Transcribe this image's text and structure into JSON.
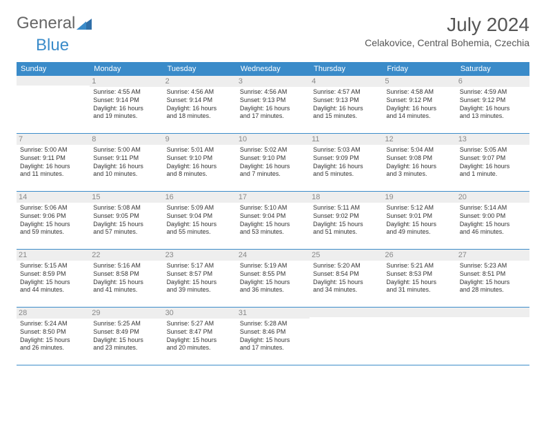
{
  "logo": {
    "text1": "General",
    "text2": "Blue"
  },
  "title": "July 2024",
  "location": "Celakovice, Central Bohemia, Czechia",
  "weekday_headers": [
    "Sunday",
    "Monday",
    "Tuesday",
    "Wednesday",
    "Thursday",
    "Friday",
    "Saturday"
  ],
  "colors": {
    "header_bg": "#3a8bc9",
    "header_fg": "#ffffff",
    "daynum_bg": "#eeeeee",
    "daynum_fg": "#888888",
    "row_border": "#3a8bc9"
  },
  "weeks": [
    [
      null,
      {
        "n": "1",
        "sr": "Sunrise: 4:55 AM",
        "ss": "Sunset: 9:14 PM",
        "d1": "Daylight: 16 hours",
        "d2": "and 19 minutes."
      },
      {
        "n": "2",
        "sr": "Sunrise: 4:56 AM",
        "ss": "Sunset: 9:14 PM",
        "d1": "Daylight: 16 hours",
        "d2": "and 18 minutes."
      },
      {
        "n": "3",
        "sr": "Sunrise: 4:56 AM",
        "ss": "Sunset: 9:13 PM",
        "d1": "Daylight: 16 hours",
        "d2": "and 17 minutes."
      },
      {
        "n": "4",
        "sr": "Sunrise: 4:57 AM",
        "ss": "Sunset: 9:13 PM",
        "d1": "Daylight: 16 hours",
        "d2": "and 15 minutes."
      },
      {
        "n": "5",
        "sr": "Sunrise: 4:58 AM",
        "ss": "Sunset: 9:12 PM",
        "d1": "Daylight: 16 hours",
        "d2": "and 14 minutes."
      },
      {
        "n": "6",
        "sr": "Sunrise: 4:59 AM",
        "ss": "Sunset: 9:12 PM",
        "d1": "Daylight: 16 hours",
        "d2": "and 13 minutes."
      }
    ],
    [
      {
        "n": "7",
        "sr": "Sunrise: 5:00 AM",
        "ss": "Sunset: 9:11 PM",
        "d1": "Daylight: 16 hours",
        "d2": "and 11 minutes."
      },
      {
        "n": "8",
        "sr": "Sunrise: 5:00 AM",
        "ss": "Sunset: 9:11 PM",
        "d1": "Daylight: 16 hours",
        "d2": "and 10 minutes."
      },
      {
        "n": "9",
        "sr": "Sunrise: 5:01 AM",
        "ss": "Sunset: 9:10 PM",
        "d1": "Daylight: 16 hours",
        "d2": "and 8 minutes."
      },
      {
        "n": "10",
        "sr": "Sunrise: 5:02 AM",
        "ss": "Sunset: 9:10 PM",
        "d1": "Daylight: 16 hours",
        "d2": "and 7 minutes."
      },
      {
        "n": "11",
        "sr": "Sunrise: 5:03 AM",
        "ss": "Sunset: 9:09 PM",
        "d1": "Daylight: 16 hours",
        "d2": "and 5 minutes."
      },
      {
        "n": "12",
        "sr": "Sunrise: 5:04 AM",
        "ss": "Sunset: 9:08 PM",
        "d1": "Daylight: 16 hours",
        "d2": "and 3 minutes."
      },
      {
        "n": "13",
        "sr": "Sunrise: 5:05 AM",
        "ss": "Sunset: 9:07 PM",
        "d1": "Daylight: 16 hours",
        "d2": "and 1 minute."
      }
    ],
    [
      {
        "n": "14",
        "sr": "Sunrise: 5:06 AM",
        "ss": "Sunset: 9:06 PM",
        "d1": "Daylight: 15 hours",
        "d2": "and 59 minutes."
      },
      {
        "n": "15",
        "sr": "Sunrise: 5:08 AM",
        "ss": "Sunset: 9:05 PM",
        "d1": "Daylight: 15 hours",
        "d2": "and 57 minutes."
      },
      {
        "n": "16",
        "sr": "Sunrise: 5:09 AM",
        "ss": "Sunset: 9:04 PM",
        "d1": "Daylight: 15 hours",
        "d2": "and 55 minutes."
      },
      {
        "n": "17",
        "sr": "Sunrise: 5:10 AM",
        "ss": "Sunset: 9:04 PM",
        "d1": "Daylight: 15 hours",
        "d2": "and 53 minutes."
      },
      {
        "n": "18",
        "sr": "Sunrise: 5:11 AM",
        "ss": "Sunset: 9:02 PM",
        "d1": "Daylight: 15 hours",
        "d2": "and 51 minutes."
      },
      {
        "n": "19",
        "sr": "Sunrise: 5:12 AM",
        "ss": "Sunset: 9:01 PM",
        "d1": "Daylight: 15 hours",
        "d2": "and 49 minutes."
      },
      {
        "n": "20",
        "sr": "Sunrise: 5:14 AM",
        "ss": "Sunset: 9:00 PM",
        "d1": "Daylight: 15 hours",
        "d2": "and 46 minutes."
      }
    ],
    [
      {
        "n": "21",
        "sr": "Sunrise: 5:15 AM",
        "ss": "Sunset: 8:59 PM",
        "d1": "Daylight: 15 hours",
        "d2": "and 44 minutes."
      },
      {
        "n": "22",
        "sr": "Sunrise: 5:16 AM",
        "ss": "Sunset: 8:58 PM",
        "d1": "Daylight: 15 hours",
        "d2": "and 41 minutes."
      },
      {
        "n": "23",
        "sr": "Sunrise: 5:17 AM",
        "ss": "Sunset: 8:57 PM",
        "d1": "Daylight: 15 hours",
        "d2": "and 39 minutes."
      },
      {
        "n": "24",
        "sr": "Sunrise: 5:19 AM",
        "ss": "Sunset: 8:55 PM",
        "d1": "Daylight: 15 hours",
        "d2": "and 36 minutes."
      },
      {
        "n": "25",
        "sr": "Sunrise: 5:20 AM",
        "ss": "Sunset: 8:54 PM",
        "d1": "Daylight: 15 hours",
        "d2": "and 34 minutes."
      },
      {
        "n": "26",
        "sr": "Sunrise: 5:21 AM",
        "ss": "Sunset: 8:53 PM",
        "d1": "Daylight: 15 hours",
        "d2": "and 31 minutes."
      },
      {
        "n": "27",
        "sr": "Sunrise: 5:23 AM",
        "ss": "Sunset: 8:51 PM",
        "d1": "Daylight: 15 hours",
        "d2": "and 28 minutes."
      }
    ],
    [
      {
        "n": "28",
        "sr": "Sunrise: 5:24 AM",
        "ss": "Sunset: 8:50 PM",
        "d1": "Daylight: 15 hours",
        "d2": "and 26 minutes."
      },
      {
        "n": "29",
        "sr": "Sunrise: 5:25 AM",
        "ss": "Sunset: 8:49 PM",
        "d1": "Daylight: 15 hours",
        "d2": "and 23 minutes."
      },
      {
        "n": "30",
        "sr": "Sunrise: 5:27 AM",
        "ss": "Sunset: 8:47 PM",
        "d1": "Daylight: 15 hours",
        "d2": "and 20 minutes."
      },
      {
        "n": "31",
        "sr": "Sunrise: 5:28 AM",
        "ss": "Sunset: 8:46 PM",
        "d1": "Daylight: 15 hours",
        "d2": "and 17 minutes."
      },
      null,
      null,
      null
    ]
  ]
}
